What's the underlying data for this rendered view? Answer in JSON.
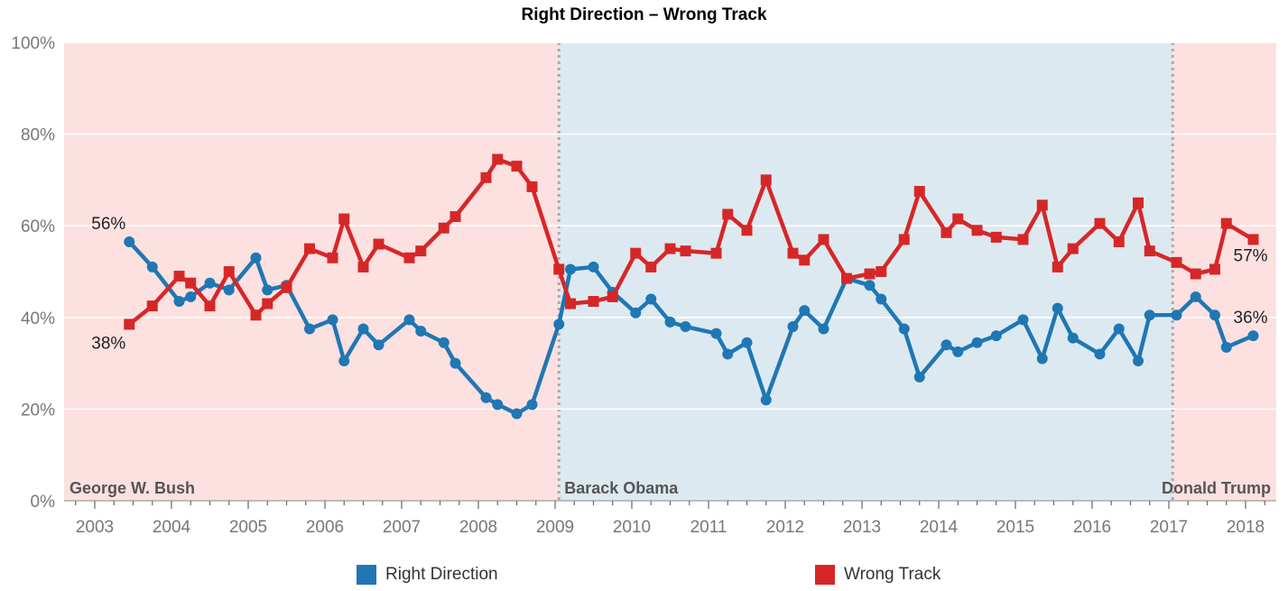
{
  "chart_data": {
    "type": "line",
    "title": "Right Direction – Wrong Track",
    "xlabel": "",
    "ylabel": "",
    "xlim": [
      2002.6,
      2018.4
    ],
    "ylim": [
      0,
      100
    ],
    "y_ticks": [
      "0%",
      "20%",
      "40%",
      "60%",
      "80%",
      "100%"
    ],
    "x_ticks": [
      "2003",
      "2004",
      "2005",
      "2006",
      "2007",
      "2008",
      "2009",
      "2010",
      "2011",
      "2012",
      "2013",
      "2014",
      "2015",
      "2016",
      "2017",
      "2018"
    ],
    "grid": "horizontal",
    "legend_position": "bottom",
    "colors": {
      "right": "#1f77b4",
      "wrong": "#d62728",
      "rep_bg": "#fde0e0",
      "dem_bg": "#dde9f0",
      "divider": "#aaaaaa"
    },
    "periods": [
      {
        "label": "George W. Bush",
        "start": 2002.6,
        "end": 2009.05,
        "party": "rep"
      },
      {
        "label": "Barack Obama",
        "start": 2009.05,
        "end": 2017.05,
        "party": "dem"
      },
      {
        "label": "Donald Trump",
        "start": 2017.05,
        "end": 2018.4,
        "party": "rep"
      }
    ],
    "annotations": [
      {
        "text": "56%",
        "series": "right",
        "end": "start"
      },
      {
        "text": "38%",
        "series": "wrong",
        "end": "start"
      },
      {
        "text": "36%",
        "series": "right",
        "end": "end"
      },
      {
        "text": "57%",
        "series": "wrong",
        "end": "end"
      }
    ],
    "series": [
      {
        "name": "Right Direction",
        "key": "right",
        "marker": "circle",
        "points": [
          [
            2003.45,
            56.5
          ],
          [
            2003.75,
            51
          ],
          [
            2004.1,
            43.5
          ],
          [
            2004.25,
            44.5
          ],
          [
            2004.5,
            47.5
          ],
          [
            2004.75,
            46
          ],
          [
            2005.1,
            53
          ],
          [
            2005.25,
            46
          ],
          [
            2005.5,
            47
          ],
          [
            2005.8,
            37.5
          ],
          [
            2006.1,
            39.5
          ],
          [
            2006.25,
            30.5
          ],
          [
            2006.5,
            37.5
          ],
          [
            2006.7,
            34
          ],
          [
            2007.1,
            39.5
          ],
          [
            2007.25,
            37
          ],
          [
            2007.55,
            34.5
          ],
          [
            2007.7,
            30
          ],
          [
            2008.1,
            22.5
          ],
          [
            2008.25,
            21
          ],
          [
            2008.5,
            19
          ],
          [
            2008.7,
            21
          ],
          [
            2009.05,
            38.5
          ],
          [
            2009.2,
            50.5
          ],
          [
            2009.5,
            51
          ],
          [
            2009.75,
            45.5
          ],
          [
            2010.05,
            41
          ],
          [
            2010.25,
            44
          ],
          [
            2010.5,
            39
          ],
          [
            2010.7,
            38
          ],
          [
            2011.1,
            36.5
          ],
          [
            2011.25,
            32
          ],
          [
            2011.5,
            34.5
          ],
          [
            2011.75,
            22
          ],
          [
            2012.1,
            38
          ],
          [
            2012.25,
            41.5
          ],
          [
            2012.5,
            37.5
          ],
          [
            2012.8,
            48.5
          ],
          [
            2013.1,
            47
          ],
          [
            2013.25,
            44
          ],
          [
            2013.55,
            37.5
          ],
          [
            2013.75,
            27
          ],
          [
            2014.1,
            34
          ],
          [
            2014.25,
            32.5
          ],
          [
            2014.5,
            34.5
          ],
          [
            2014.75,
            36
          ],
          [
            2015.1,
            39.5
          ],
          [
            2015.35,
            31
          ],
          [
            2015.55,
            42
          ],
          [
            2015.75,
            35.5
          ],
          [
            2016.1,
            32
          ],
          [
            2016.35,
            37.5
          ],
          [
            2016.6,
            30.5
          ],
          [
            2016.75,
            40.5
          ],
          [
            2017.1,
            40.5
          ],
          [
            2017.35,
            44.5
          ],
          [
            2017.6,
            40.5
          ],
          [
            2017.75,
            33.5
          ],
          [
            2018.1,
            36
          ]
        ]
      },
      {
        "name": "Wrong Track",
        "key": "wrong",
        "marker": "square",
        "points": [
          [
            2003.45,
            38.5
          ],
          [
            2003.75,
            42.5
          ],
          [
            2004.1,
            49
          ],
          [
            2004.25,
            47.5
          ],
          [
            2004.5,
            42.5
          ],
          [
            2004.75,
            50
          ],
          [
            2005.1,
            40.5
          ],
          [
            2005.25,
            43
          ],
          [
            2005.5,
            46.5
          ],
          [
            2005.8,
            55
          ],
          [
            2006.1,
            53
          ],
          [
            2006.25,
            61.5
          ],
          [
            2006.5,
            51
          ],
          [
            2006.7,
            56
          ],
          [
            2007.1,
            53
          ],
          [
            2007.25,
            54.5
          ],
          [
            2007.55,
            59.5
          ],
          [
            2007.7,
            62
          ],
          [
            2008.1,
            70.5
          ],
          [
            2008.25,
            74.5
          ],
          [
            2008.5,
            73
          ],
          [
            2008.7,
            68.5
          ],
          [
            2009.05,
            50.5
          ],
          [
            2009.2,
            43
          ],
          [
            2009.5,
            43.5
          ],
          [
            2009.75,
            44.5
          ],
          [
            2010.05,
            54
          ],
          [
            2010.25,
            51
          ],
          [
            2010.5,
            55
          ],
          [
            2010.7,
            54.5
          ],
          [
            2011.1,
            54
          ],
          [
            2011.25,
            62.5
          ],
          [
            2011.5,
            59
          ],
          [
            2011.75,
            70
          ],
          [
            2012.1,
            54
          ],
          [
            2012.25,
            52.5
          ],
          [
            2012.5,
            57
          ],
          [
            2012.8,
            48.5
          ],
          [
            2013.1,
            49.5
          ],
          [
            2013.25,
            50
          ],
          [
            2013.55,
            57
          ],
          [
            2013.75,
            67.5
          ],
          [
            2014.1,
            58.5
          ],
          [
            2014.25,
            61.5
          ],
          [
            2014.5,
            59
          ],
          [
            2014.75,
            57.5
          ],
          [
            2015.1,
            57
          ],
          [
            2015.35,
            64.5
          ],
          [
            2015.55,
            51
          ],
          [
            2015.75,
            55
          ],
          [
            2016.1,
            60.5
          ],
          [
            2016.35,
            56.5
          ],
          [
            2016.6,
            65
          ],
          [
            2016.75,
            54.5
          ],
          [
            2017.1,
            52
          ],
          [
            2017.35,
            49.5
          ],
          [
            2017.6,
            50.5
          ],
          [
            2017.75,
            60.5
          ],
          [
            2018.1,
            57
          ]
        ]
      }
    ]
  }
}
